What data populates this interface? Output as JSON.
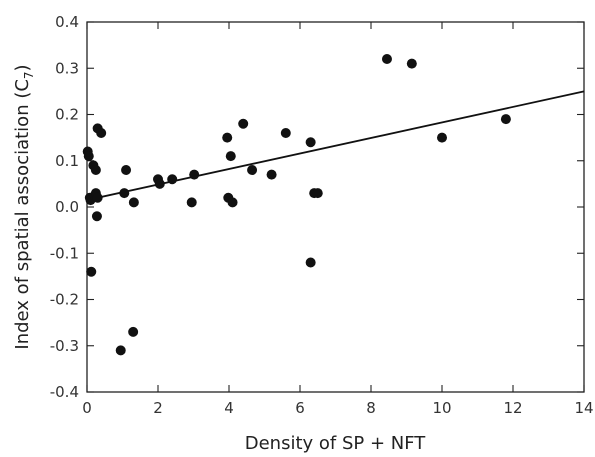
{
  "chart_data": {
    "type": "scatter",
    "title": "",
    "xlabel": "Density of SP + NFT",
    "ylabel_main": "Index of spatial association (C",
    "ylabel_sub": "7",
    "ylabel_end": ")",
    "xlim": [
      0,
      14
    ],
    "ylim": [
      -0.4,
      0.4
    ],
    "xticks": [
      0,
      2,
      4,
      6,
      8,
      10,
      12,
      14
    ],
    "xtick_labels": [
      "0",
      "2",
      "4",
      "6",
      "8",
      "10",
      "12",
      "14"
    ],
    "yticks": [
      0.4,
      0.3,
      0.2,
      0.1,
      0.0,
      -0.1,
      -0.2,
      -0.3,
      -0.4
    ],
    "ytick_labels": [
      "0.4",
      "0.3",
      "0.2",
      "0.1",
      "0.0",
      "-0.1",
      "-0.2",
      "-0.3",
      "-0.4"
    ],
    "grid": false,
    "points": [
      {
        "x": 0.02,
        "y": 0.12
      },
      {
        "x": 0.05,
        "y": 0.11
      },
      {
        "x": 0.08,
        "y": 0.02
      },
      {
        "x": 0.1,
        "y": 0.015
      },
      {
        "x": 0.12,
        "y": -0.14
      },
      {
        "x": 0.18,
        "y": 0.09
      },
      {
        "x": 0.22,
        "y": 0.025
      },
      {
        "x": 0.25,
        "y": 0.08
      },
      {
        "x": 0.25,
        "y": 0.03
      },
      {
        "x": 0.28,
        "y": -0.02
      },
      {
        "x": 0.3,
        "y": 0.02
      },
      {
        "x": 0.3,
        "y": 0.17
      },
      {
        "x": 0.4,
        "y": 0.16
      },
      {
        "x": 0.95,
        "y": -0.31
      },
      {
        "x": 1.05,
        "y": 0.03
      },
      {
        "x": 1.1,
        "y": 0.08
      },
      {
        "x": 1.3,
        "y": -0.27
      },
      {
        "x": 1.32,
        "y": 0.01
      },
      {
        "x": 2.0,
        "y": 0.06
      },
      {
        "x": 2.05,
        "y": 0.05
      },
      {
        "x": 2.4,
        "y": 0.06
      },
      {
        "x": 2.95,
        "y": 0.01
      },
      {
        "x": 3.02,
        "y": 0.07
      },
      {
        "x": 3.95,
        "y": 0.15
      },
      {
        "x": 3.98,
        "y": 0.02
      },
      {
        "x": 4.05,
        "y": 0.11
      },
      {
        "x": 4.1,
        "y": 0.01
      },
      {
        "x": 4.4,
        "y": 0.18
      },
      {
        "x": 4.65,
        "y": 0.08
      },
      {
        "x": 5.2,
        "y": 0.07
      },
      {
        "x": 5.6,
        "y": 0.16
      },
      {
        "x": 6.3,
        "y": 0.14
      },
      {
        "x": 6.3,
        "y": -0.12
      },
      {
        "x": 6.4,
        "y": 0.03
      },
      {
        "x": 6.5,
        "y": 0.03
      },
      {
        "x": 8.45,
        "y": 0.32
      },
      {
        "x": 9.15,
        "y": 0.31
      },
      {
        "x": 10.0,
        "y": 0.15
      },
      {
        "x": 11.8,
        "y": 0.19
      }
    ],
    "trend_line": {
      "x": [
        0,
        14
      ],
      "y": [
        0.015,
        0.25
      ]
    }
  }
}
